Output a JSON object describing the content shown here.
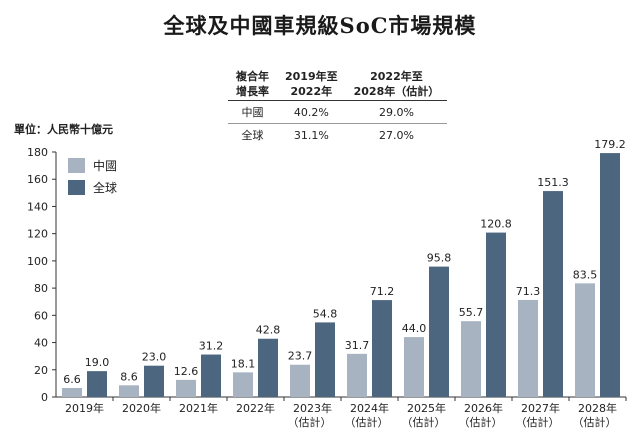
{
  "chart_data": {
    "type": "bar",
    "title": "全球及中國車規級SoC市場規模",
    "ylabel": "單位：人民幣十億元",
    "ylim": [
      0,
      180
    ],
    "yticks": [
      0,
      20,
      40,
      60,
      80,
      100,
      120,
      140,
      160,
      180
    ],
    "grid": false,
    "legend_position": "top-left",
    "categories": [
      "2019年",
      "2020年",
      "2021年",
      "2022年",
      "2023年",
      "2024年",
      "2025年",
      "2026年",
      "2027年",
      "2028年"
    ],
    "category_sublabels": [
      "",
      "",
      "",
      "",
      "（估計）",
      "（估計）",
      "（估計）",
      "（估計）",
      "（估計）",
      "（估計）"
    ],
    "series": [
      {
        "name": "中國",
        "color": "#a7b3c0",
        "values": [
          6.6,
          8.6,
          12.6,
          18.1,
          23.7,
          31.7,
          44.0,
          55.7,
          71.3,
          83.5
        ],
        "labels": [
          "6.6",
          "8.6",
          "12.6",
          "18.1",
          "23.7",
          "31.7",
          "44.0",
          "55.7",
          "71.3",
          "83.5"
        ]
      },
      {
        "name": "全球",
        "color": "#4d6680",
        "values": [
          19.0,
          23.0,
          31.2,
          42.8,
          54.8,
          71.2,
          95.8,
          120.8,
          151.3,
          179.2
        ],
        "labels": [
          "19.0",
          "23.0",
          "31.2",
          "42.8",
          "54.8",
          "71.2",
          "95.8",
          "120.8",
          "151.3",
          "179.2"
        ]
      }
    ]
  },
  "cagr_table": {
    "header": [
      "複合年\n增長率",
      "2019年至\n2022年",
      "2022年至\n2028年（估計）"
    ],
    "rows": [
      [
        "中國",
        "40.2%",
        "29.0%"
      ],
      [
        "全球",
        "31.1%",
        "27.0%"
      ]
    ]
  }
}
